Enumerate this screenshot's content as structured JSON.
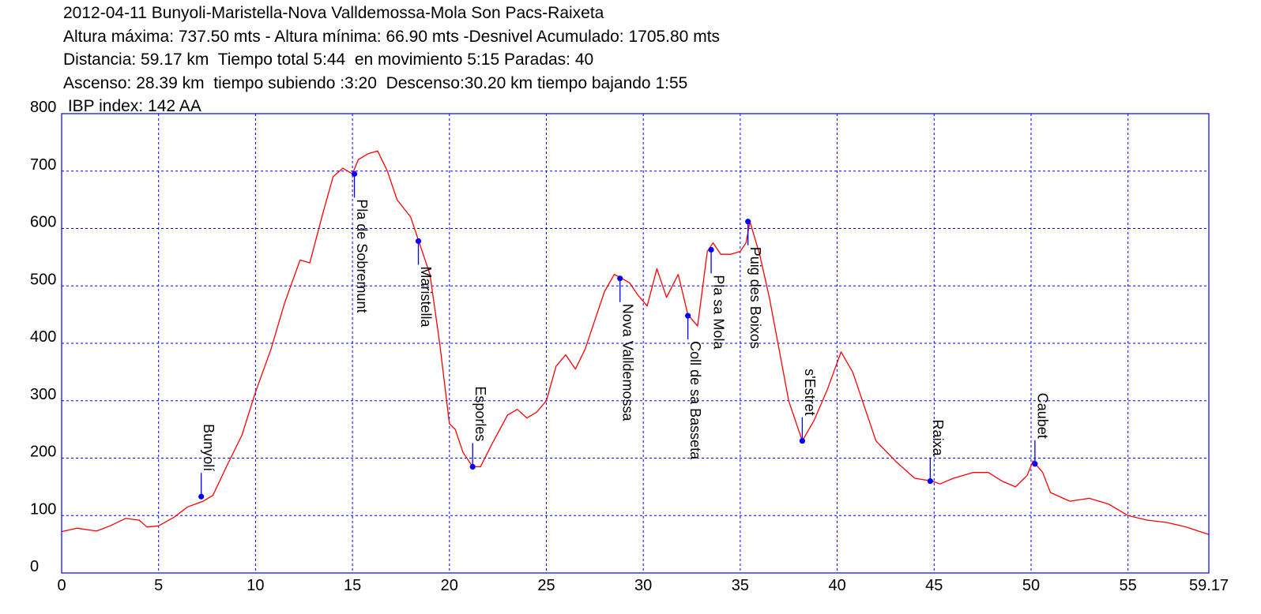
{
  "header": {
    "line1": "2012-04-11 Bunyoli-Maristella-Nova Valldemossa-Mola Son Pacs-Raixeta",
    "line2": "Altura máxima: 737.50 mts - Altura mínima: 66.90 mts -Desnivel Acumulado: 1705.80 mts",
    "line3": "Distancia: 59.17 km  Tiempo total 5:44  en movimiento 5:15 Paradas: 40",
    "line4": "Ascenso: 28.39 km  tiempo subiendo :3:20  Descenso:30.20 km tiempo bajando 1:55",
    "line5": " IBP index: 142 AA"
  },
  "chart_data": {
    "type": "line",
    "xlim": [
      0,
      59.17
    ],
    "ylim": [
      0,
      800
    ],
    "x_ticks": [
      "0",
      "5",
      "10",
      "15",
      "20",
      "25",
      "30",
      "35",
      "40",
      "45",
      "50",
      "55",
      "59.17"
    ],
    "x_tick_values": [
      0,
      5,
      10,
      15,
      20,
      25,
      30,
      35,
      40,
      45,
      50,
      55,
      59.17
    ],
    "y_ticks": [
      "0",
      "100",
      "200",
      "300",
      "400",
      "500",
      "600",
      "700",
      "800"
    ],
    "y_tick_values": [
      0,
      100,
      200,
      300,
      400,
      500,
      600,
      700,
      800
    ],
    "grid": true,
    "series": [
      {
        "color": "#ff0000",
        "x": [
          0,
          0.8,
          1.8,
          2.5,
          3.3,
          4.0,
          4.4,
          5.0,
          5.8,
          6.5,
          7.3,
          7.8,
          8.5,
          9.3,
          10.0,
          10.8,
          11.5,
          12.3,
          12.8,
          13.5,
          14.0,
          14.5,
          15.0,
          15.3,
          15.8,
          16.3,
          16.8,
          17.3,
          18.0,
          18.4,
          19.0,
          19.5,
          20.0,
          20.3,
          20.7,
          21.2,
          21.6,
          22.2,
          23.0,
          23.5,
          24.0,
          24.5,
          25.0,
          25.5,
          26.0,
          26.5,
          27.0,
          27.5,
          28.0,
          28.5,
          28.8,
          29.3,
          29.7,
          30.2,
          30.7,
          31.2,
          31.8,
          32.3,
          32.8,
          33.3,
          33.6,
          34.0,
          34.5,
          35.0,
          35.3,
          35.5,
          36.0,
          36.5,
          37.0,
          37.5,
          38.2,
          38.8,
          39.5,
          40.2,
          40.8,
          41.5,
          42.0,
          43.0,
          44.0,
          44.9,
          45.3,
          46.0,
          47.0,
          47.8,
          48.5,
          49.2,
          49.8,
          50.1,
          50.6,
          51.0,
          52.0,
          53.0,
          54.0,
          55.0,
          56.0,
          57.0,
          58.0,
          59.17
        ],
        "y": [
          72,
          78,
          73,
          82,
          95,
          92,
          80,
          82,
          97,
          115,
          125,
          135,
          185,
          240,
          315,
          390,
          470,
          545,
          540,
          630,
          690,
          705,
          695,
          720,
          730,
          735,
          700,
          650,
          620,
          580,
          520,
          400,
          260,
          250,
          210,
          185,
          185,
          225,
          275,
          285,
          270,
          280,
          300,
          360,
          380,
          355,
          390,
          440,
          490,
          520,
          515,
          505,
          485,
          465,
          530,
          480,
          520,
          450,
          430,
          560,
          575,
          555,
          555,
          560,
          575,
          612,
          555,
          480,
          390,
          300,
          230,
          265,
          320,
          385,
          350,
          280,
          230,
          195,
          165,
          160,
          155,
          165,
          175,
          175,
          160,
          150,
          170,
          195,
          175,
          140,
          125,
          130,
          120,
          100,
          92,
          88,
          80,
          66.9
        ]
      }
    ],
    "waypoints": [
      {
        "name": "Bunyolí",
        "x": 7.2,
        "y": 133,
        "label_above": true
      },
      {
        "name": "Pla de Sobremunt",
        "x": 15.1,
        "y": 695,
        "label_above": false
      },
      {
        "name": "Maristella",
        "x": 18.4,
        "y": 578,
        "label_above": false
      },
      {
        "name": "Esporles",
        "x": 21.2,
        "y": 185,
        "label_above": true
      },
      {
        "name": "Nova Valldemossa",
        "x": 28.8,
        "y": 513,
        "label_above": false
      },
      {
        "name": "Coll de sa Basseta",
        "x": 32.3,
        "y": 448,
        "label_above": false
      },
      {
        "name": "Pla sa Mola",
        "x": 33.5,
        "y": 563,
        "label_above": false
      },
      {
        "name": "Puig des Boixos",
        "x": 35.4,
        "y": 612,
        "label_above": false
      },
      {
        "name": "s'Estret",
        "x": 38.2,
        "y": 230,
        "label_above": true
      },
      {
        "name": "Raixa",
        "x": 44.8,
        "y": 160,
        "label_above": true
      },
      {
        "name": "Caubet",
        "x": 50.2,
        "y": 190,
        "label_above": true
      }
    ]
  }
}
